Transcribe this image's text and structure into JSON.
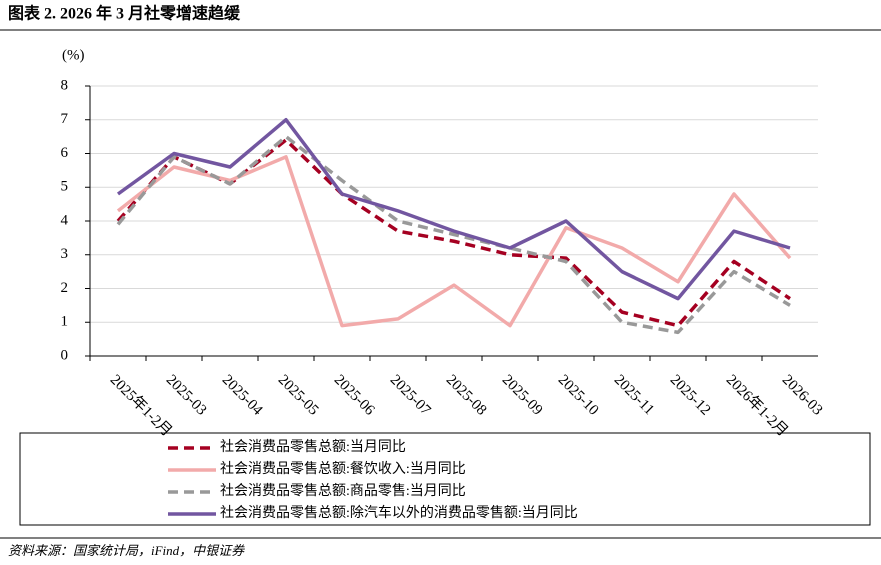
{
  "chart_data": {
    "type": "line",
    "title": "图表 2. 2026 年 3 月社零增速趋缓",
    "ylabel": "(%)",
    "source": "资料来源：国家统计局，iFind，中银证券",
    "categories": [
      "2025年1-2月",
      "2025-03",
      "2025-04",
      "2025-05",
      "2025-06",
      "2025-07",
      "2025-08",
      "2025-09",
      "2025-10",
      "2025-11",
      "2025-12",
      "2026年1-2月",
      "2026-03"
    ],
    "series": [
      {
        "name": "社会消费品零售总额:当月同比",
        "color": "#a50021",
        "dash": true,
        "values": [
          4.0,
          5.9,
          5.1,
          6.4,
          4.8,
          3.7,
          3.4,
          3.0,
          2.9,
          1.3,
          0.9,
          2.8,
          1.7
        ]
      },
      {
        "name": "社会消费品零售总额:餐饮收入:当月同比",
        "color": "#f2aaaa",
        "dash": false,
        "values": [
          4.3,
          5.6,
          5.2,
          5.9,
          0.9,
          1.1,
          2.1,
          0.9,
          3.8,
          3.2,
          2.2,
          4.8,
          2.9
        ]
      },
      {
        "name": "社会消费品零售总额:商品零售:当月同比",
        "color": "#999999",
        "dash": true,
        "values": [
          3.9,
          5.9,
          5.1,
          6.5,
          5.2,
          4.0,
          3.6,
          3.2,
          2.8,
          1.0,
          0.7,
          2.5,
          1.5
        ]
      },
      {
        "name": "社会消费品零售总额:除汽车以外的消费品零售额:当月同比",
        "color": "#7256a0",
        "dash": false,
        "values": [
          4.8,
          6.0,
          5.6,
          7.0,
          4.8,
          4.3,
          3.7,
          3.2,
          4.0,
          2.5,
          1.7,
          3.7,
          3.2
        ]
      }
    ],
    "ylim": [
      0,
      8
    ],
    "yticks": [
      0,
      1,
      2,
      3,
      4,
      5,
      6,
      7,
      8
    ],
    "grid": true
  }
}
